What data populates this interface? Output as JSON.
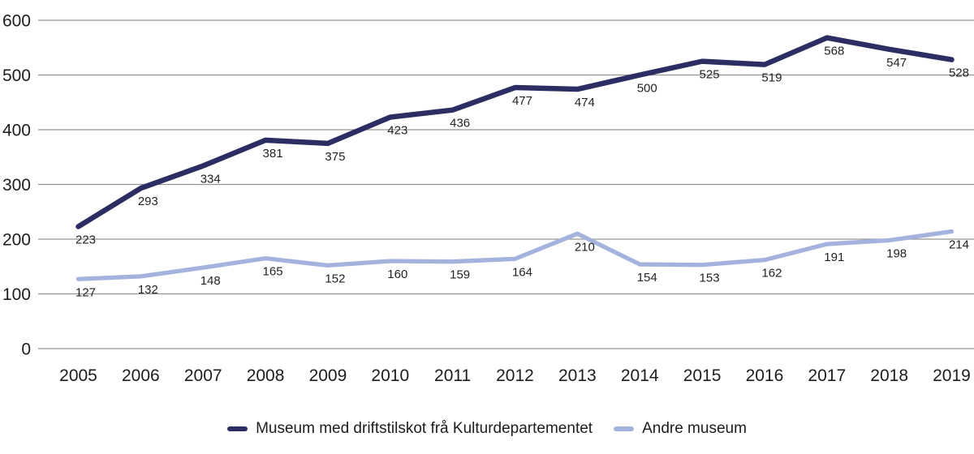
{
  "chart_data": {
    "type": "line",
    "title": "",
    "xlabel": "",
    "ylabel": "",
    "categories": [
      "2005",
      "2006",
      "2007",
      "2008",
      "2009",
      "2010",
      "2011",
      "2012",
      "2013",
      "2014",
      "2015",
      "2016",
      "2017",
      "2018",
      "2019"
    ],
    "series": [
      {
        "name": "Museum med driftstilskot frå Kulturdepartementet",
        "color": "#2b2d63",
        "values": [
          223,
          293,
          334,
          381,
          375,
          423,
          436,
          477,
          474,
          500,
          525,
          519,
          568,
          547,
          528
        ]
      },
      {
        "name": "Andre museum",
        "color": "#a4b3de",
        "values": [
          127,
          132,
          148,
          165,
          152,
          160,
          159,
          164,
          210,
          154,
          153,
          162,
          191,
          198,
          214
        ]
      }
    ],
    "ylim": [
      0,
      600
    ],
    "ytick_step": 100,
    "ytick_labels": [
      "0",
      "100",
      "200",
      "300",
      "400",
      "500",
      "600"
    ],
    "grid": true,
    "gridline_color": "#949494",
    "text_color": "#1d1d1d",
    "data_label_color": "#232323",
    "background_color": "#ffffff",
    "data_labels": true,
    "legend_position": "bottom"
  }
}
